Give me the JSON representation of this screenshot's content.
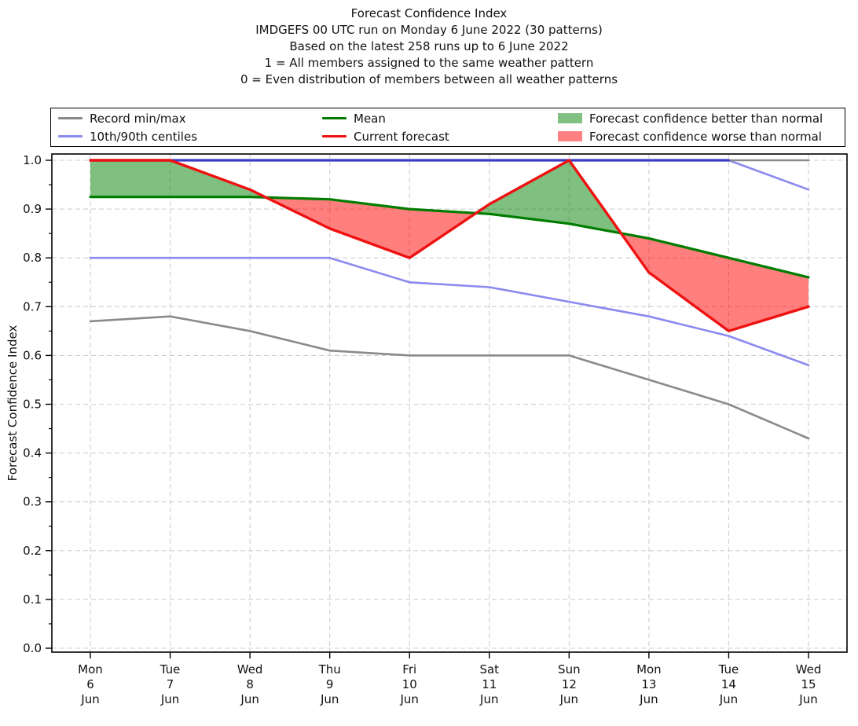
{
  "header": {
    "line1": "Forecast Confidence Index",
    "line2": "IMDGEFS 00 UTC run on Monday 6 June 2022 (30 patterns)",
    "line3": "Based on the latest 258 runs up to 6 June 2022",
    "line4": "1 = All members assigned to the same weather pattern",
    "line5": "0 = Even distribution of members between all weather patterns"
  },
  "legend": {
    "items": [
      {
        "name": "record-minmax",
        "label": "Record min/max",
        "swatch": "line",
        "color": "#8a8a8a",
        "column": 0
      },
      {
        "name": "centiles",
        "label": "10th/90th centiles",
        "swatch": "line",
        "color": "#8a8af0",
        "column": 0
      },
      {
        "name": "mean",
        "label": "Mean",
        "swatch": "line",
        "color": "#007d00",
        "column": 1
      },
      {
        "name": "current-forecast",
        "label": "Current forecast",
        "swatch": "line",
        "color": "#ee1111",
        "column": 1
      },
      {
        "name": "confidence-better",
        "label": "Forecast confidence better than normal",
        "swatch": "patch",
        "color": "#80c080",
        "column": 2
      },
      {
        "name": "confidence-worse",
        "label": "Forecast confidence worse than normal",
        "swatch": "patch",
        "color": "#ff8080",
        "column": 2
      }
    ]
  },
  "chart_data": {
    "type": "line",
    "title": "Forecast Confidence Index",
    "ylabel": "Forecast Confidence Index",
    "xlabel": "",
    "ylim": [
      0.0,
      1.0
    ],
    "yticks": [
      "0.0",
      "0.1",
      "0.2",
      "0.3",
      "0.4",
      "0.5",
      "0.6",
      "0.7",
      "0.8",
      "0.9",
      "1.0"
    ],
    "grid": "dashed both axes",
    "legend_position": "top, 3 columns, boxed",
    "categories": [
      {
        "dow": "Mon",
        "day": "6",
        "month": "Jun"
      },
      {
        "dow": "Tue",
        "day": "7",
        "month": "Jun"
      },
      {
        "dow": "Wed",
        "day": "8",
        "month": "Jun"
      },
      {
        "dow": "Thu",
        "day": "9",
        "month": "Jun"
      },
      {
        "dow": "Fri",
        "day": "10",
        "month": "Jun"
      },
      {
        "dow": "Sat",
        "day": "11",
        "month": "Jun"
      },
      {
        "dow": "Sun",
        "day": "12",
        "month": "Jun"
      },
      {
        "dow": "Mon",
        "day": "13",
        "month": "Jun"
      },
      {
        "dow": "Tue",
        "day": "14",
        "month": "Jun"
      },
      {
        "dow": "Wed",
        "day": "15",
        "month": "Jun"
      }
    ],
    "series": [
      {
        "name": "Record max",
        "color": "#8a8a8a",
        "width": 2.6,
        "values": [
          1.0,
          1.0,
          1.0,
          1.0,
          1.0,
          1.0,
          1.0,
          1.0,
          1.0,
          1.0
        ]
      },
      {
        "name": "Record min",
        "color": "#8a8a8a",
        "width": 2.6,
        "values": [
          0.67,
          0.68,
          0.65,
          0.61,
          0.6,
          0.6,
          0.6,
          0.55,
          0.5,
          0.43
        ]
      },
      {
        "name": "90th centile",
        "color": "#8a8af0",
        "width": 2.6,
        "values": [
          1.0,
          1.0,
          1.0,
          1.0,
          1.0,
          1.0,
          1.0,
          1.0,
          1.0,
          0.94
        ]
      },
      {
        "name": "10th centile",
        "color": "#8a8af0",
        "width": 2.6,
        "values": [
          0.8,
          0.8,
          0.8,
          0.8,
          0.75,
          0.74,
          0.71,
          0.68,
          0.64,
          0.58
        ]
      },
      {
        "name": "Mean",
        "color": "#007d00",
        "width": 3.2,
        "values": [
          0.925,
          0.925,
          0.925,
          0.92,
          0.9,
          0.89,
          0.87,
          0.84,
          0.8,
          0.76
        ]
      },
      {
        "name": "Current forecast",
        "color": "#ee1111",
        "width": 3.4,
        "values": [
          1.0,
          1.0,
          0.94,
          0.86,
          0.8,
          0.91,
          1.0,
          0.77,
          0.65,
          0.7
        ]
      }
    ],
    "fills": {
      "better_than_normal_fill": "rgba(0,128,0,0.5)",
      "worse_than_normal_fill": "rgba(255,0,0,0.5)",
      "rule": "area between Current forecast and Mean; green where forecast above mean, red where below"
    },
    "overlap_colors": {
      "top_line_dark_blue": "#3b3bc4",
      "grid": "#cfcfcf"
    }
  }
}
